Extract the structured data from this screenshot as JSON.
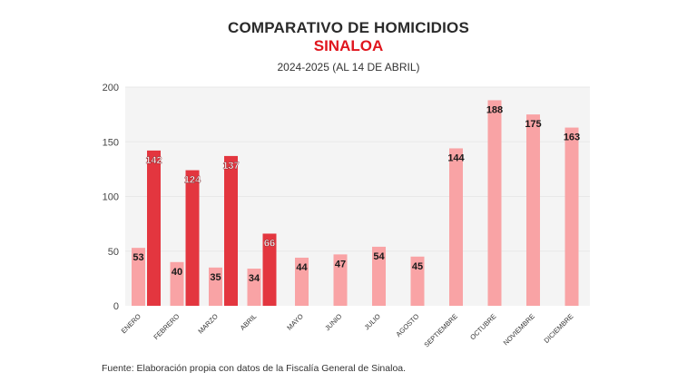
{
  "header": {
    "title": "COMPARATIVO DE HOMICIDIOS",
    "subtitle": "SINALOA",
    "daterange": "2024-2025 (AL 14 DE ABRIL)"
  },
  "footer": {
    "source": "Fuente: Elaboración propia con datos de la Fiscalía General de Sinaloa."
  },
  "colors": {
    "series_2024": "#f9a3a5",
    "series_2025": "#e3363f",
    "plot_bg": "#f4f4f4",
    "grid": "#e8e8e8",
    "subtitle": "#e0161e"
  },
  "chart_data": {
    "type": "bar",
    "title": "COMPARATIVO DE HOMICIDIOS",
    "subtitle": "SINALOA — 2024-2025 (AL 14 DE ABRIL)",
    "xlabel": "",
    "ylabel": "",
    "ylim": [
      0,
      200
    ],
    "yticks": [
      0,
      50,
      100,
      150,
      200
    ],
    "grid": true,
    "legend": "none",
    "categories": [
      "ENERO",
      "FEBRERO",
      "MARZO",
      "ABRIL",
      "MAYO",
      "JUNIO",
      "JULIO",
      "AGOSTO",
      "SEPTIEMBRE",
      "OCTUBRE",
      "NOVIEMBRE",
      "DICIEMBRE"
    ],
    "series": [
      {
        "name": "2024",
        "values": [
          53,
          40,
          35,
          34,
          44,
          47,
          54,
          45,
          144,
          188,
          175,
          163
        ]
      },
      {
        "name": "2025",
        "values": [
          142,
          124,
          137,
          66,
          null,
          null,
          null,
          null,
          null,
          null,
          null,
          null
        ]
      }
    ]
  }
}
